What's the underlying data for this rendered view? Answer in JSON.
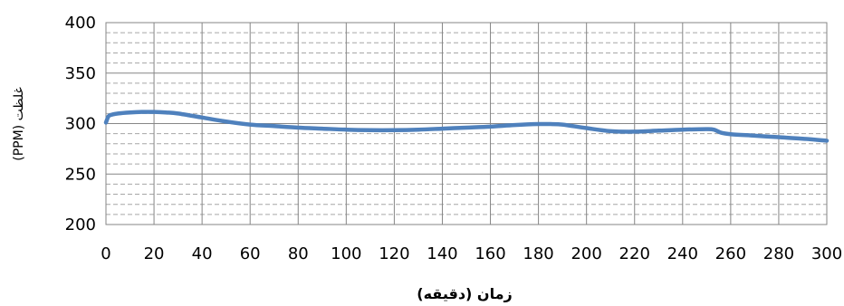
{
  "chart_data": {
    "type": "line",
    "title": "",
    "xlabel": "زمان (دقیقه)",
    "ylabel": "غلظت (PPM)",
    "xlim": [
      0,
      300
    ],
    "ylim": [
      200,
      400
    ],
    "x_ticks": [
      0,
      20,
      40,
      60,
      80,
      100,
      120,
      140,
      160,
      180,
      200,
      220,
      240,
      260,
      280,
      300
    ],
    "y_ticks": [
      200,
      250,
      300,
      350,
      400
    ],
    "minor_y_step": 10,
    "grid": true,
    "legend": "none",
    "series": [
      {
        "color": "#4f81bd",
        "x": [
          0,
          1,
          2,
          5,
          10,
          15,
          20,
          25,
          30,
          40,
          50,
          60,
          70,
          80,
          90,
          100,
          110,
          120,
          130,
          140,
          150,
          160,
          170,
          180,
          185,
          190,
          200,
          210,
          220,
          230,
          240,
          250,
          253,
          256,
          260,
          270,
          280,
          290,
          300
        ],
        "y": [
          301,
          307,
          308.5,
          310,
          311,
          311.5,
          311.5,
          311,
          310,
          306,
          302,
          299,
          297.5,
          296,
          295,
          294,
          293.5,
          293.5,
          294,
          295,
          296,
          297,
          298.5,
          299.5,
          299.5,
          299,
          295.5,
          292.5,
          292,
          293,
          294,
          294.5,
          294,
          291,
          289.5,
          288,
          286.5,
          285,
          283
        ]
      }
    ]
  }
}
